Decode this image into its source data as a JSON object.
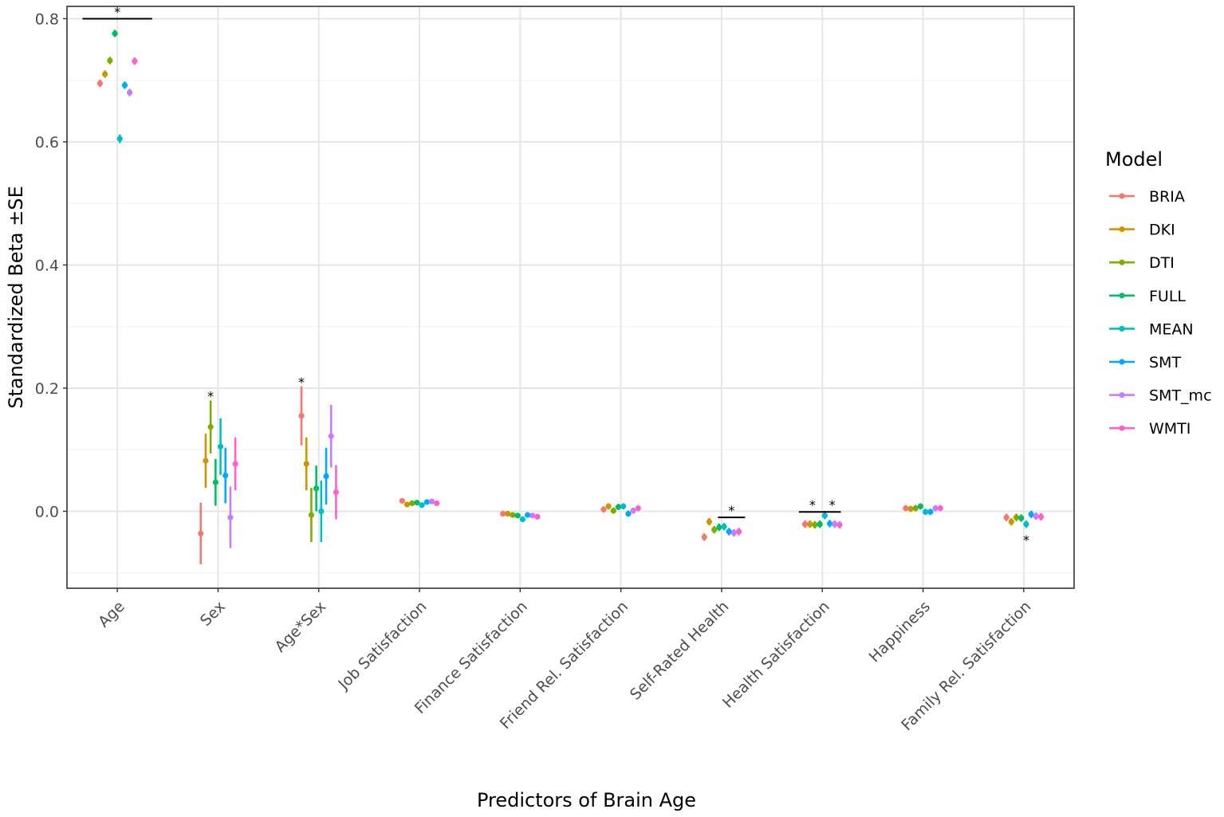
{
  "chart_data": {
    "type": "scatter",
    "xlabel": "Predictors of Brain Age",
    "ylabel": "Standardized Beta ±SE",
    "ylim": [
      -0.125,
      0.82
    ],
    "yticks": [
      0.0,
      0.2,
      0.4,
      0.6,
      0.8
    ],
    "ytick_labels": [
      "0.0",
      "0.2",
      "0.4",
      "0.6",
      "0.8"
    ],
    "grid": true,
    "legend_placement": "right",
    "legend_title": "Model",
    "categories": [
      "Age",
      "Sex",
      "Age*Sex",
      "Job Satisfaction",
      "Finance Satisfaction",
      "Friend Rel. Satisfaction",
      "Self-Rated Health",
      "Health Satisfaction",
      "Happiness",
      "Family Rel. Satisfaction"
    ],
    "series": [
      {
        "name": "BRIA",
        "color": "#F8766D",
        "values": [
          0.695,
          -0.036,
          0.155,
          0.017,
          -0.004,
          0.003,
          -0.042,
          -0.021,
          0.005,
          -0.01
        ],
        "se": [
          0.006,
          0.05,
          0.048,
          0.004,
          0.004,
          0.005,
          0.006,
          0.006,
          0.005,
          0.006
        ]
      },
      {
        "name": "DKI",
        "color": "#CD9600",
        "values": [
          0.71,
          0.082,
          0.077,
          0.011,
          -0.004,
          0.008,
          -0.017,
          -0.021,
          0.004,
          -0.017
        ],
        "se": [
          0.006,
          0.044,
          0.043,
          0.004,
          0.004,
          0.005,
          0.006,
          0.006,
          0.005,
          0.006
        ]
      },
      {
        "name": "DTI",
        "color": "#7CAE00",
        "values": [
          0.732,
          0.137,
          -0.006,
          0.013,
          -0.006,
          0.001,
          -0.03,
          -0.022,
          0.005,
          -0.01
        ],
        "se": [
          0.006,
          0.043,
          0.044,
          0.004,
          0.004,
          0.005,
          0.006,
          0.006,
          0.005,
          0.006
        ]
      },
      {
        "name": "FULL",
        "color": "#00BE67",
        "values": [
          0.776,
          0.047,
          0.037,
          0.014,
          -0.007,
          0.007,
          -0.026,
          -0.021,
          0.008,
          -0.011
        ],
        "se": [
          0.006,
          0.038,
          0.037,
          0.004,
          0.004,
          0.005,
          0.006,
          0.006,
          0.005,
          0.006
        ]
      },
      {
        "name": "MEAN",
        "color": "#00BFC4",
        "values": [
          0.605,
          0.105,
          0.0,
          0.01,
          -0.013,
          0.008,
          -0.025,
          -0.007,
          -0.001,
          -0.021
        ],
        "se": [
          0.007,
          0.046,
          0.05,
          0.004,
          0.004,
          0.005,
          0.006,
          0.006,
          0.005,
          0.006
        ]
      },
      {
        "name": "SMT",
        "color": "#00A9FF",
        "values": [
          0.692,
          0.058,
          0.057,
          0.015,
          -0.006,
          -0.004,
          -0.033,
          -0.02,
          -0.001,
          -0.005
        ],
        "se": [
          0.006,
          0.045,
          0.046,
          0.004,
          0.004,
          0.005,
          0.006,
          0.006,
          0.005,
          0.006
        ]
      },
      {
        "name": "SMT_mc",
        "color": "#C77CFF",
        "values": [
          0.68,
          -0.01,
          0.122,
          0.016,
          -0.007,
          0.001,
          -0.035,
          -0.021,
          0.005,
          -0.008
        ],
        "se": [
          0.006,
          0.05,
          0.051,
          0.004,
          0.004,
          0.005,
          0.006,
          0.006,
          0.005,
          0.006
        ]
      },
      {
        "name": "WMTI",
        "color": "#FF61CC",
        "values": [
          0.731,
          0.077,
          0.031,
          0.013,
          -0.009,
          0.005,
          -0.033,
          -0.022,
          0.005,
          -0.009
        ],
        "se": [
          0.006,
          0.043,
          0.044,
          0.004,
          0.004,
          0.005,
          0.006,
          0.006,
          0.005,
          0.006
        ]
      }
    ],
    "significance": [
      {
        "category": "Age",
        "label": "*",
        "bracket": [
          0,
          7
        ],
        "y": 0.8,
        "position": "above"
      },
      {
        "category": "Sex",
        "label": "*",
        "series_index": 2,
        "y": 0.185,
        "position": "above"
      },
      {
        "category": "Age*Sex",
        "label": "*",
        "series_index": 0,
        "y": 0.208,
        "position": "above"
      },
      {
        "category": "Self-Rated Health",
        "label": "*",
        "bracket": [
          4,
          7
        ],
        "y": -0.01,
        "position": "above"
      },
      {
        "category": "Health Satisfaction",
        "label": "*",
        "bracket": [
          0,
          3
        ],
        "y": -0.001,
        "position": "above"
      },
      {
        "category": "Health Satisfaction",
        "label": "*",
        "bracket": [
          5,
          6
        ],
        "y": -0.001,
        "position": "above"
      },
      {
        "category": "Family Rel. Satisfaction",
        "label": "*",
        "series_index": 4,
        "y": -0.038,
        "position": "below"
      }
    ]
  }
}
